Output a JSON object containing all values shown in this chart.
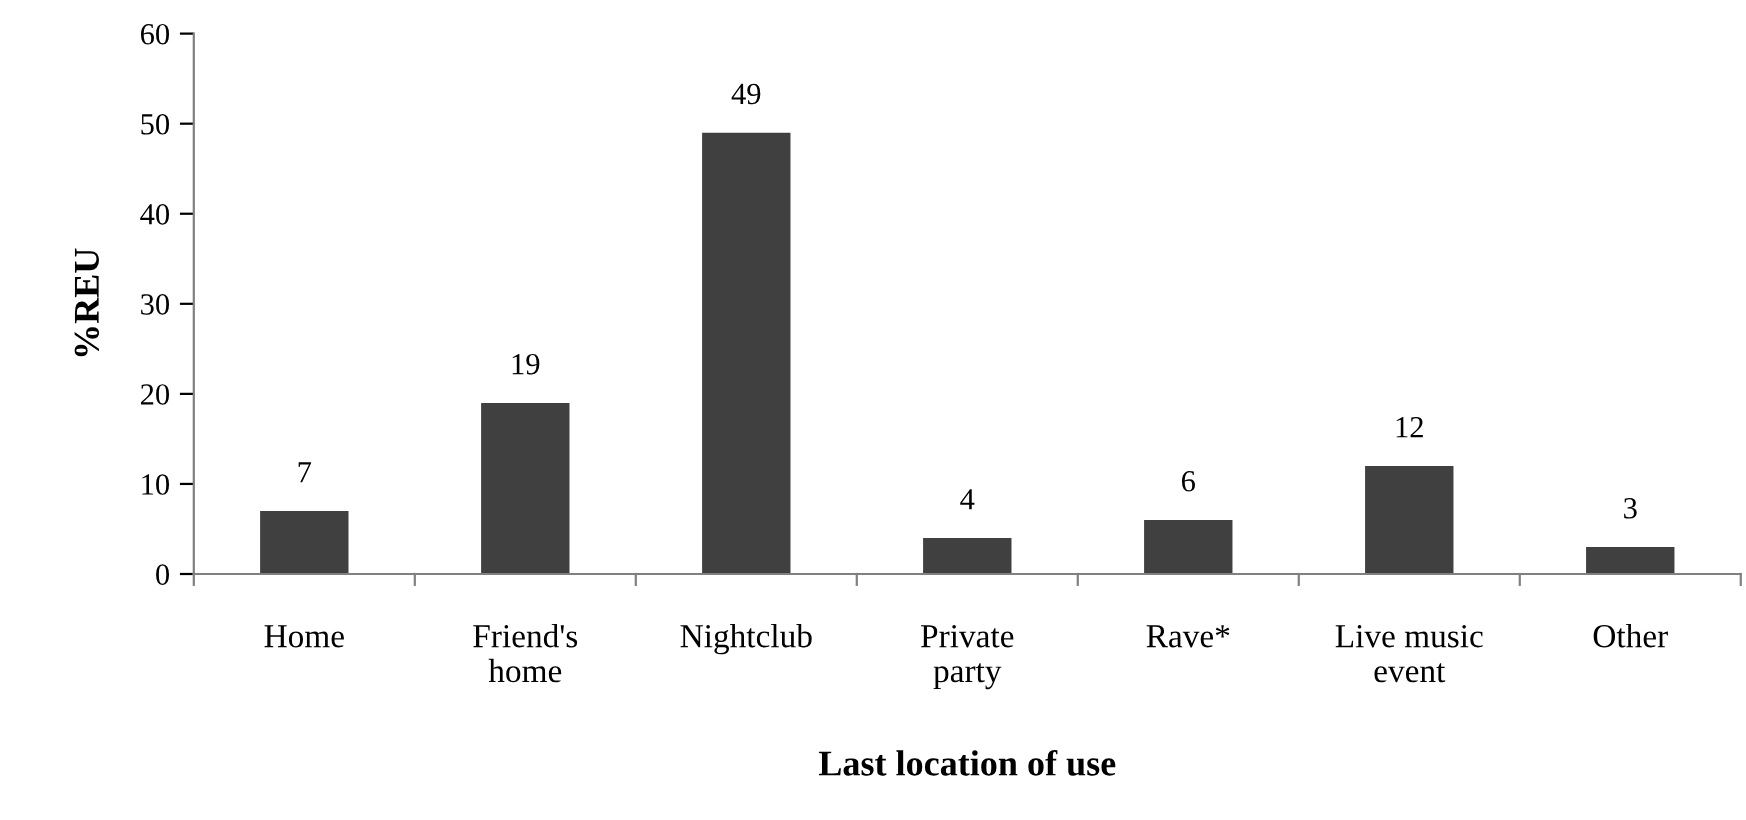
{
  "chart_data": {
    "type": "bar",
    "xlabel": "Last location of use",
    "ylabel": "%REU",
    "categories": [
      "Home",
      "Friend's\nhome",
      "Nightclub",
      "Private\nparty",
      "Rave*",
      "Live music\nevent",
      "Other"
    ],
    "values": [
      7,
      19,
      49,
      4,
      6,
      12,
      3
    ],
    "color": "#404040",
    "ylim": [
      0,
      60
    ],
    "yticks": [
      0,
      10,
      20,
      30,
      40,
      50,
      60
    ],
    "grid": false,
    "data_labels": true
  }
}
